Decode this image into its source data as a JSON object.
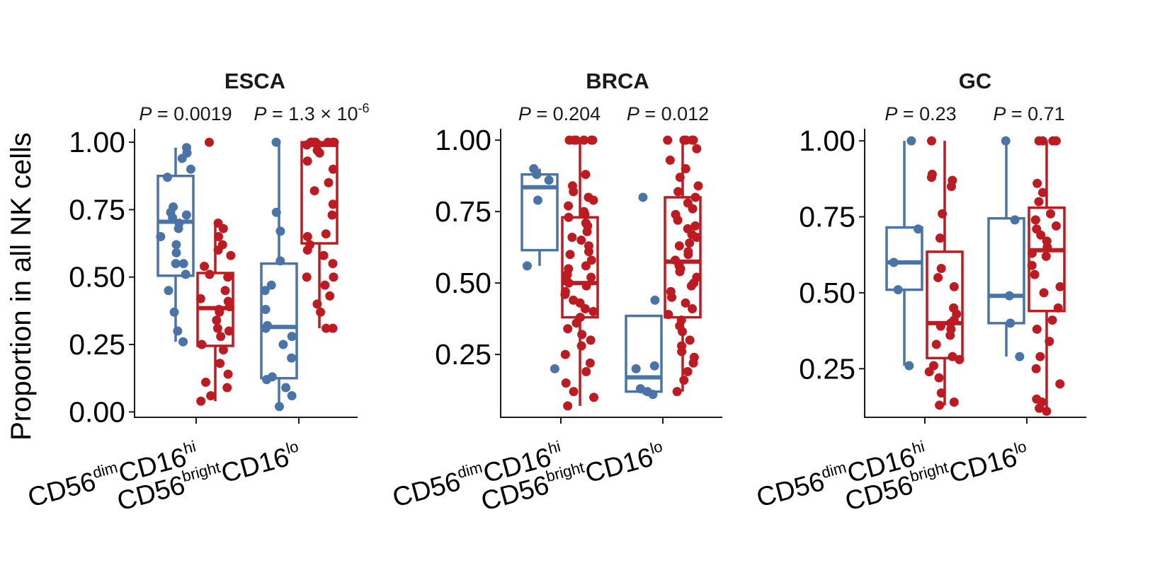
{
  "chart_data": {
    "type": "box-jitter",
    "ylabel": "Proportion in all NK cells",
    "colors": {
      "dim": "#4a74a8",
      "bright": "#bd1b21"
    },
    "categories": [
      {
        "key": "dim",
        "base": "CD56",
        "sup1": "dim",
        "mid": "CD16",
        "sup2": "hi"
      },
      {
        "key": "bright",
        "base": "CD56",
        "sup1": "bright",
        "mid": "CD16",
        "sup2": "lo"
      }
    ],
    "panels": [
      {
        "title": "ESCA",
        "ylim": [
          -0.02,
          1.05
        ],
        "yticks": [
          0.0,
          0.25,
          0.5,
          0.75,
          1.0
        ],
        "ytick_labels": [
          "0.00",
          "0.25",
          "0.50",
          "0.75",
          "1.00"
        ],
        "pvalues": [
          {
            "label": "P",
            "text": " = 0.0019",
            "sup": ""
          },
          {
            "label": "P",
            "text": " = 1.3 × 10",
            "sup": "-6"
          }
        ],
        "groups": [
          {
            "category": "dim",
            "series": "tumor",
            "color": "#4a74a8",
            "q1": 0.505,
            "median": 0.705,
            "q3": 0.875,
            "whisker_low": 0.26,
            "whisker_high": 0.98,
            "points": [
              0.26,
              0.3,
              0.37,
              0.45,
              0.51,
              0.55,
              0.55,
              0.59,
              0.62,
              0.65,
              0.68,
              0.7,
              0.72,
              0.73,
              0.74,
              0.76,
              0.87,
              0.9,
              0.94,
              0.96,
              0.98
            ]
          },
          {
            "category": "dim",
            "series": "normal",
            "color": "#bd1b21",
            "q1": 0.245,
            "median": 0.385,
            "q3": 0.515,
            "whisker_low": 0.04,
            "whisker_high": 0.7,
            "points": [
              0.04,
              0.06,
              0.09,
              0.11,
              0.14,
              0.18,
              0.23,
              0.25,
              0.28,
              0.3,
              0.31,
              0.34,
              0.37,
              0.38,
              0.39,
              0.41,
              0.42,
              0.45,
              0.5,
              0.51,
              0.54,
              0.58,
              0.6,
              0.62,
              0.65,
              0.68,
              0.7,
              1.0
            ]
          },
          {
            "category": "bright",
            "series": "tumor",
            "color": "#4a74a8",
            "q1": 0.125,
            "median": 0.315,
            "q3": 0.55,
            "whisker_low": 0.02,
            "whisker_high": 1.0,
            "points": [
              0.02,
              0.06,
              0.09,
              0.12,
              0.13,
              0.2,
              0.25,
              0.28,
              0.31,
              0.32,
              0.38,
              0.45,
              0.47,
              0.56,
              0.67,
              0.74,
              1.0
            ]
          },
          {
            "category": "bright",
            "series": "normal",
            "color": "#bd1b21",
            "q1": 0.625,
            "median": 0.99,
            "q3": 1.0,
            "whisker_low": 0.31,
            "whisker_high": 1.0,
            "points": [
              0.31,
              0.31,
              0.37,
              0.4,
              0.43,
              0.47,
              0.5,
              0.5,
              0.55,
              0.58,
              0.6,
              0.62,
              0.65,
              0.66,
              0.73,
              0.77,
              0.82,
              0.85,
              0.9,
              0.93,
              0.96,
              0.97,
              0.99,
              1.0,
              1.0,
              1.0,
              1.0,
              1.0,
              1.0,
              1.0
            ]
          }
        ]
      },
      {
        "title": "BRCA",
        "ylim": [
          0.03,
          1.04
        ],
        "yticks": [
          0.25,
          0.5,
          0.75,
          1.0
        ],
        "ytick_labels": [
          "0.25",
          "0.50",
          "0.75",
          "1.00"
        ],
        "pvalues": [
          {
            "label": "P",
            "text": " = 0.204",
            "sup": ""
          },
          {
            "label": "P",
            "text": " = 0.012",
            "sup": ""
          }
        ],
        "groups": [
          {
            "category": "dim",
            "series": "tumor",
            "color": "#4a74a8",
            "q1": 0.615,
            "median": 0.835,
            "q3": 0.88,
            "whisker_low": 0.56,
            "whisker_high": 0.9,
            "points": [
              0.2,
              0.56,
              0.79,
              0.86,
              0.88,
              0.9
            ]
          },
          {
            "category": "dim",
            "series": "normal",
            "color": "#bd1b21",
            "q1": 0.38,
            "median": 0.5,
            "q3": 0.73,
            "whisker_low": 0.07,
            "whisker_high": 1.0,
            "points": [
              0.07,
              0.1,
              0.12,
              0.15,
              0.19,
              0.22,
              0.25,
              0.28,
              0.3,
              0.32,
              0.34,
              0.36,
              0.38,
              0.4,
              0.41,
              0.43,
              0.44,
              0.46,
              0.47,
              0.49,
              0.5,
              0.51,
              0.52,
              0.53,
              0.55,
              0.56,
              0.58,
              0.6,
              0.61,
              0.63,
              0.65,
              0.66,
              0.68,
              0.7,
              0.71,
              0.73,
              0.74,
              0.75,
              0.77,
              0.79,
              0.8,
              0.82,
              0.84,
              0.88,
              1.0,
              1.0,
              1.0,
              1.0,
              1.0,
              1.0
            ]
          },
          {
            "category": "bright",
            "series": "tumor",
            "color": "#4a74a8",
            "q1": 0.12,
            "median": 0.17,
            "q3": 0.385,
            "whisker_low": 0.11,
            "whisker_high": 0.385,
            "points": [
              0.11,
              0.12,
              0.13,
              0.2,
              0.21,
              0.44,
              0.8
            ]
          },
          {
            "category": "bright",
            "series": "normal",
            "color": "#bd1b21",
            "q1": 0.38,
            "median": 0.575,
            "q3": 0.8,
            "whisker_low": 0.12,
            "whisker_high": 1.0,
            "points": [
              0.12,
              0.16,
              0.19,
              0.22,
              0.24,
              0.26,
              0.28,
              0.3,
              0.33,
              0.35,
              0.37,
              0.39,
              0.41,
              0.43,
              0.45,
              0.47,
              0.49,
              0.5,
              0.52,
              0.54,
              0.55,
              0.56,
              0.58,
              0.6,
              0.61,
              0.63,
              0.64,
              0.66,
              0.67,
              0.69,
              0.7,
              0.72,
              0.74,
              0.76,
              0.78,
              0.8,
              0.82,
              0.84,
              0.87,
              0.9,
              0.93,
              0.97,
              1.0,
              1.0,
              1.0,
              1.0,
              1.0
            ]
          }
        ]
      },
      {
        "title": "GC",
        "ylim": [
          0.09,
          1.04
        ],
        "yticks": [
          0.25,
          0.5,
          0.75,
          1.0
        ],
        "ytick_labels": [
          "0.25",
          "0.50",
          "0.75",
          "1.00"
        ],
        "pvalues": [
          {
            "label": "P",
            "text": " = 0.23",
            "sup": ""
          },
          {
            "label": "P",
            "text": " = 0.71",
            "sup": ""
          }
        ],
        "groups": [
          {
            "category": "dim",
            "series": "tumor",
            "color": "#4a74a8",
            "q1": 0.51,
            "median": 0.6,
            "q3": 0.715,
            "whisker_low": 0.26,
            "whisker_high": 1.0,
            "points": [
              0.26,
              0.51,
              0.6,
              0.71,
              1.0
            ]
          },
          {
            "category": "dim",
            "series": "normal",
            "color": "#bd1b21",
            "q1": 0.285,
            "median": 0.4,
            "q3": 0.635,
            "whisker_low": 0.13,
            "whisker_high": 1.0,
            "points": [
              0.13,
              0.14,
              0.17,
              0.22,
              0.24,
              0.26,
              0.28,
              0.29,
              0.33,
              0.36,
              0.38,
              0.39,
              0.4,
              0.41,
              0.43,
              0.45,
              0.52,
              0.55,
              0.58,
              0.68,
              0.76,
              0.85,
              0.87,
              0.88,
              0.89,
              1.0
            ]
          },
          {
            "category": "bright",
            "series": "tumor",
            "color": "#4a74a8",
            "q1": 0.4,
            "median": 0.49,
            "q3": 0.745,
            "whisker_low": 0.29,
            "whisker_high": 1.0,
            "points": [
              0.29,
              0.4,
              0.49,
              0.74,
              1.0
            ]
          },
          {
            "category": "bright",
            "series": "normal",
            "color": "#bd1b21",
            "q1": 0.44,
            "median": 0.64,
            "q3": 0.78,
            "whisker_low": 0.11,
            "whisker_high": 1.0,
            "points": [
              0.11,
              0.12,
              0.14,
              0.15,
              0.2,
              0.25,
              0.29,
              0.34,
              0.38,
              0.41,
              0.45,
              0.5,
              0.52,
              0.56,
              0.59,
              0.62,
              0.63,
              0.65,
              0.67,
              0.69,
              0.71,
              0.72,
              0.74,
              0.76,
              0.8,
              0.83,
              0.86,
              1.0,
              1.0,
              1.0,
              1.0
            ]
          }
        ]
      }
    ]
  }
}
